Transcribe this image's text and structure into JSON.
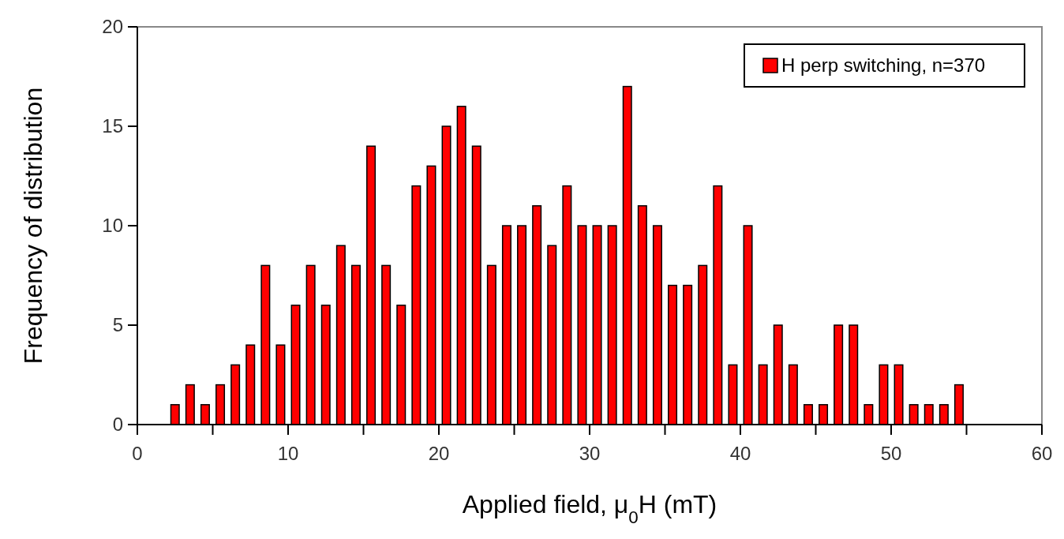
{
  "chart_data": {
    "type": "histogram",
    "xlabel": "Applied field, μ$_{0}$H (mT)",
    "ylabel": "Frequency of distribution",
    "bins": [
      2,
      3,
      4,
      5,
      6,
      7,
      8,
      9,
      10,
      11,
      12,
      13,
      14,
      15,
      16,
      17,
      18,
      19,
      20,
      21,
      22,
      23,
      24,
      25,
      26,
      27,
      28,
      29,
      30,
      31,
      32,
      33,
      34,
      35,
      36,
      37,
      38,
      39,
      40,
      41,
      42,
      43,
      44,
      45,
      46,
      47,
      48,
      49,
      50,
      51,
      52,
      53,
      54,
      55
    ],
    "series": [
      {
        "name": "H perp switching, n=370",
        "color": "#ff0000",
        "values": [
          1,
          2,
          1,
          2,
          3,
          4,
          8,
          4,
          6,
          8,
          6,
          9,
          8,
          14,
          8,
          6,
          12,
          13,
          15,
          16,
          14,
          8,
          10,
          10,
          11,
          9,
          12,
          10,
          10,
          10,
          17,
          11,
          10,
          7,
          7,
          8,
          12,
          3,
          10,
          3,
          5,
          3,
          1,
          1,
          5,
          5,
          1,
          3,
          3,
          1,
          1,
          1,
          2
        ]
      }
    ],
    "xlim": [
      0,
      60
    ],
    "xticks": [
      0,
      {
        "value": 5,
        "label": null
      },
      10,
      {
        "value": 15,
        "label": null
      },
      20,
      {
        "value": 25,
        "label": null
      },
      30,
      {
        "value": 35,
        "label": null
      },
      40,
      {
        "value": 45,
        "label": null
      },
      50,
      {
        "value": 55,
        "label": null
      },
      60
    ],
    "ylim": [
      0,
      20
    ],
    "yticks": [
      0,
      5,
      10,
      15,
      20
    ],
    "legend": "top right"
  }
}
